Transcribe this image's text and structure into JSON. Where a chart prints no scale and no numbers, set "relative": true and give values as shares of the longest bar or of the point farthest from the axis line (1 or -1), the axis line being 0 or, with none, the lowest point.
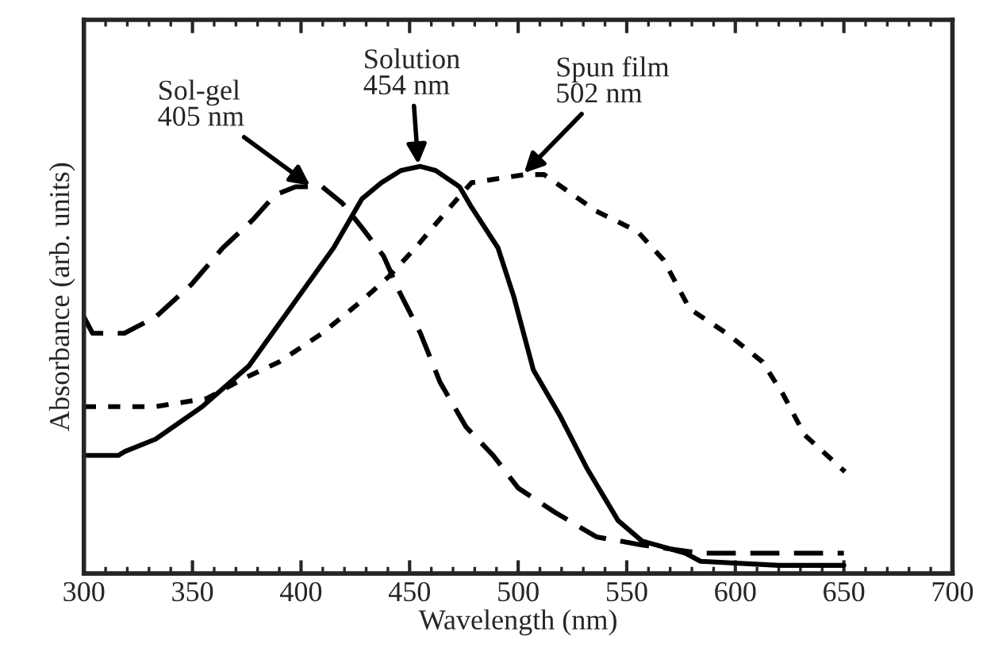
{
  "chart_data": {
    "type": "line",
    "relative": true,
    "xlabel": "Wavelength (nm)",
    "ylabel": "Absorbance (arb. units)",
    "xlim": [
      300,
      700
    ],
    "xticks": [
      300,
      350,
      400,
      450,
      500,
      550,
      600,
      650,
      700
    ],
    "series": [
      {
        "color": "#000000",
        "line_style": "dashed",
        "x": [
          300,
          304,
          318.6,
          333,
          349.5,
          364,
          378,
          388,
          397.5,
          409.7,
          419,
          428,
          438,
          445.5,
          455,
          464,
          476,
          488.5,
          500,
          517,
          536,
          557,
          584,
          650
        ],
        "values": [
          0.63,
          0.59,
          0.59,
          0.63,
          0.71,
          0.8,
          0.87,
          0.93,
          0.95,
          0.95,
          0.91,
          0.85,
          0.78,
          0.69,
          0.59,
          0.47,
          0.36,
          0.29,
          0.21,
          0.15,
          0.09,
          0.07,
          0.05,
          0.05
        ]
      },
      {
        "color": "#000000",
        "line_style": "solid",
        "x": [
          300,
          315.8,
          319,
          333,
          354.5,
          376,
          397.5,
          415,
          428,
          437,
          446,
          455,
          462,
          473,
          478.5,
          490.7,
          498,
          507,
          519,
          531.5,
          546,
          557,
          577,
          584,
          620,
          650
        ],
        "values": [
          0.29,
          0.29,
          0.3,
          0.33,
          0.41,
          0.51,
          0.67,
          0.8,
          0.92,
          0.96,
          0.99,
          1.0,
          0.99,
          0.95,
          0.9,
          0.8,
          0.68,
          0.5,
          0.39,
          0.26,
          0.13,
          0.08,
          0.05,
          0.03,
          0.02,
          0.02
        ]
      },
      {
        "color": "#000000",
        "line_style": "dotted",
        "x": [
          300,
          333,
          356.6,
          374,
          390,
          409.7,
          428,
          440.5,
          452.7,
          467,
          478.5,
          503,
          512,
          536,
          555,
          567,
          579,
          596,
          612.5,
          622,
          632,
          650.5
        ],
        "values": [
          0.41,
          0.41,
          0.43,
          0.48,
          0.52,
          0.59,
          0.67,
          0.73,
          0.8,
          0.89,
          0.96,
          0.98,
          0.98,
          0.89,
          0.84,
          0.77,
          0.65,
          0.59,
          0.52,
          0.44,
          0.34,
          0.25
        ]
      }
    ],
    "annotations": [
      {
        "text": "Sol-gel\n405 nm",
        "x": 405,
        "y": 0.95
      },
      {
        "text": "Solution\n454 nm",
        "x": 454,
        "y": 1.0
      },
      {
        "text": "Spun film\n502 nm",
        "x": 502,
        "y": 0.98
      }
    ]
  }
}
